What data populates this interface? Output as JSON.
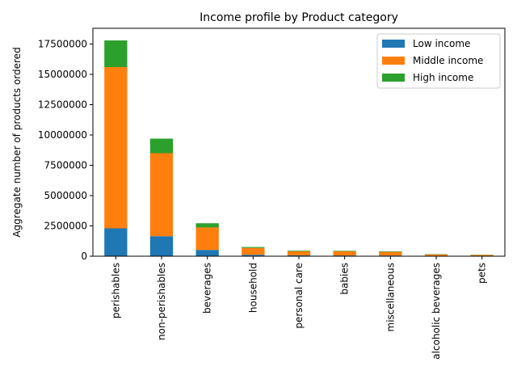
{
  "chart_data": {
    "type": "bar",
    "stacked": true,
    "title": "Income profile by Product category",
    "xlabel": "",
    "ylabel": "Aggregate number of products ordered",
    "categories": [
      "perishables",
      "non-perishables",
      "beverages",
      "household",
      "personal care",
      "babies",
      "miscellaneous",
      "alcoholic beverages",
      "pets"
    ],
    "series": [
      {
        "name": "Low income",
        "color": "#1f77b4",
        "values": [
          2300000,
          1650000,
          520000,
          120000,
          70000,
          60000,
          60000,
          35000,
          20000
        ]
      },
      {
        "name": "Middle income",
        "color": "#ff7f0e",
        "values": [
          13300000,
          6850000,
          1850000,
          560000,
          340000,
          350000,
          300000,
          110000,
          80000
        ]
      },
      {
        "name": "High income",
        "color": "#2ca02c",
        "values": [
          2200000,
          1200000,
          350000,
          80000,
          50000,
          40000,
          40000,
          30000,
          20000
        ]
      }
    ],
    "ylim": [
      0,
      18800000
    ],
    "yticks": [
      "0",
      "2500000",
      "5000000",
      "7500000",
      "10000000",
      "12500000",
      "15000000",
      "17500000"
    ],
    "legend": "top-right",
    "grid": false
  }
}
